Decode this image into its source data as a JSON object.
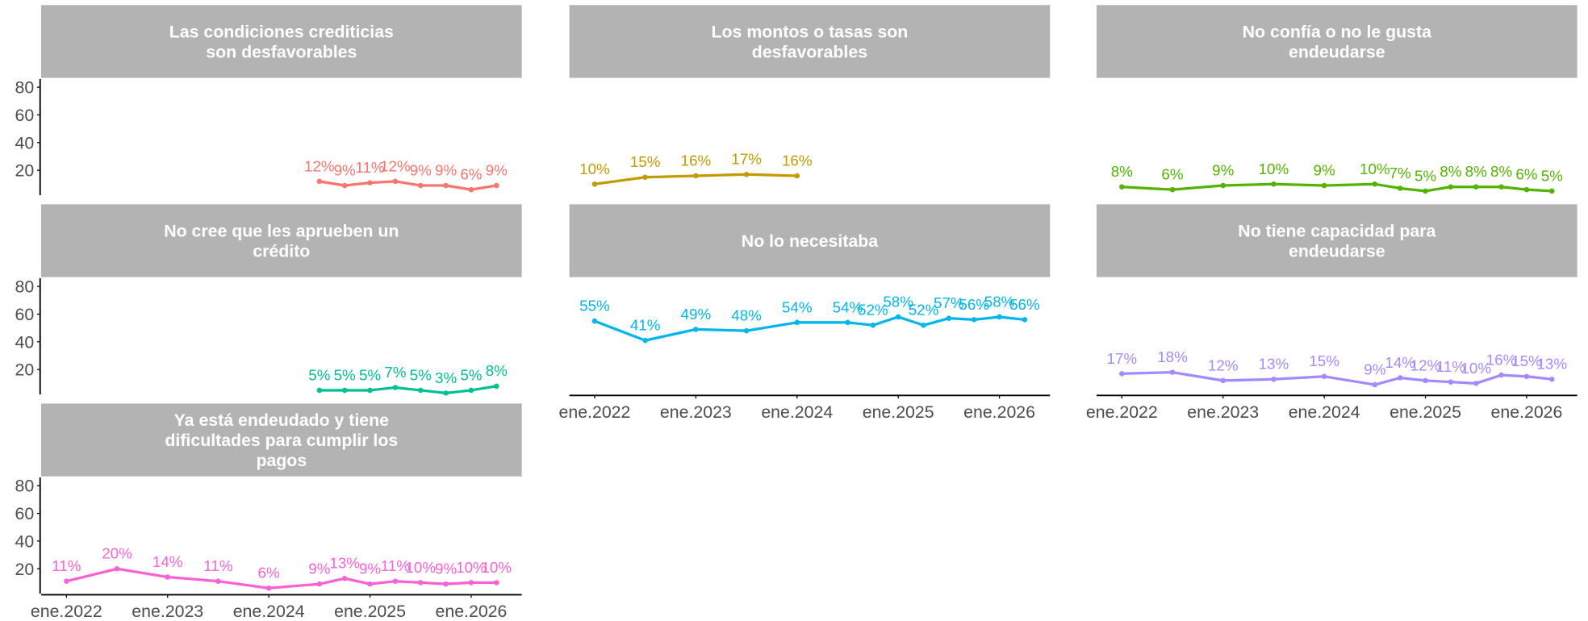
{
  "chart_data": [
    {
      "type": "line",
      "title": [
        "Las condiciones crediticias",
        "son desfavorables"
      ],
      "color": "#F8766D",
      "x": [
        "2024-07",
        "2024-10",
        "2025-01",
        "2025-04",
        "2025-07",
        "2025-10",
        "2026-01",
        "2026-04"
      ],
      "values": [
        12,
        9,
        11,
        12,
        9,
        9,
        6,
        9
      ],
      "value_labels": [
        "12%",
        "9%",
        "11%",
        "12%",
        "9%",
        "9%",
        "6%",
        "9%"
      ],
      "xlim": [
        "2021-10",
        "2026-07"
      ],
      "ylim": [
        2,
        86
      ],
      "yticks": [
        20,
        40,
        60,
        80
      ]
    },
    {
      "type": "line",
      "title": [
        "Los montos o tasas son",
        "desfavorables"
      ],
      "color": "#C49A00",
      "x": [
        "2022-01",
        "2022-07",
        "2023-01",
        "2023-07",
        "2024-01"
      ],
      "values": [
        10,
        15,
        16,
        17,
        16
      ],
      "value_labels": [
        "10%",
        "15%",
        "16%",
        "17%",
        "16%"
      ],
      "xlim": [
        "2021-10",
        "2026-07"
      ],
      "ylim": [
        2,
        86
      ]
    },
    {
      "type": "line",
      "title": [
        "No confía o no le gusta",
        "endeudarse"
      ],
      "color": "#53B400",
      "x": [
        "2022-01",
        "2022-07",
        "2023-01",
        "2023-07",
        "2024-01",
        "2024-07",
        "2024-10",
        "2025-01",
        "2025-04",
        "2025-07",
        "2025-10",
        "2026-01",
        "2026-04"
      ],
      "values": [
        8,
        6,
        9,
        10,
        9,
        10,
        7,
        5,
        8,
        8,
        8,
        6,
        5
      ],
      "value_labels": [
        "8%",
        "6%",
        "9%",
        "10%",
        "9%",
        "10%",
        "7%",
        "5%",
        "8%",
        "8%",
        "8%",
        "6%",
        "5%"
      ],
      "xlim": [
        "2021-10",
        "2026-07"
      ],
      "ylim": [
        2,
        86
      ]
    },
    {
      "type": "line",
      "title": [
        "No cree que les aprueben un",
        "crédito"
      ],
      "color": "#00C094",
      "x": [
        "2024-07",
        "2024-10",
        "2025-01",
        "2025-04",
        "2025-07",
        "2025-10",
        "2026-01",
        "2026-04"
      ],
      "values": [
        5,
        5,
        5,
        7,
        5,
        3,
        5,
        8
      ],
      "value_labels": [
        "5%",
        "5%",
        "5%",
        "7%",
        "5%",
        "3%",
        "5%",
        "8%"
      ],
      "xlim": [
        "2021-10",
        "2026-07"
      ],
      "ylim": [
        2,
        86
      ],
      "yticks": [
        20,
        40,
        60,
        80
      ]
    },
    {
      "type": "line",
      "title": [
        "No lo necesitaba"
      ],
      "color": "#00B6EB",
      "x": [
        "2022-01",
        "2022-07",
        "2023-01",
        "2023-07",
        "2024-01",
        "2024-07",
        "2024-10",
        "2025-01",
        "2025-04",
        "2025-07",
        "2025-10",
        "2026-01",
        "2026-04"
      ],
      "values": [
        55,
        41,
        49,
        48,
        54,
        54,
        52,
        58,
        52,
        57,
        56,
        58,
        56
      ],
      "value_labels": [
        "55%",
        "41%",
        "49%",
        "48%",
        "54%",
        "54%",
        "52%",
        "58%",
        "52%",
        "57%",
        "56%",
        "58%",
        "56%"
      ],
      "xlim": [
        "2021-10",
        "2026-07"
      ],
      "ylim": [
        2,
        86
      ],
      "xticks": [
        {
          "value": "2022-01",
          "label": "ene.2022"
        },
        {
          "value": "2023-01",
          "label": "ene.2023"
        },
        {
          "value": "2024-01",
          "label": "ene.2024"
        },
        {
          "value": "2025-01",
          "label": "ene.2025"
        },
        {
          "value": "2026-01",
          "label": "ene.2026"
        }
      ]
    },
    {
      "type": "line",
      "title": [
        "No tiene capacidad para",
        "endeudarse"
      ],
      "color": "#A58AFF",
      "x": [
        "2022-01",
        "2022-07",
        "2023-01",
        "2023-07",
        "2024-01",
        "2024-07",
        "2024-10",
        "2025-01",
        "2025-04",
        "2025-07",
        "2025-10",
        "2026-01",
        "2026-04"
      ],
      "values": [
        17,
        18,
        12,
        13,
        15,
        9,
        14,
        12,
        11,
        10,
        16,
        15,
        13
      ],
      "value_labels": [
        "17%",
        "18%",
        "12%",
        "13%",
        "15%",
        "9%",
        "14%",
        "12%",
        "11%",
        "10%",
        "16%",
        "15%",
        "13%"
      ],
      "xlim": [
        "2021-10",
        "2026-07"
      ],
      "ylim": [
        2,
        86
      ],
      "xticks": [
        {
          "value": "2022-01",
          "label": "ene.2022"
        },
        {
          "value": "2023-01",
          "label": "ene.2023"
        },
        {
          "value": "2024-01",
          "label": "ene.2024"
        },
        {
          "value": "2025-01",
          "label": "ene.2025"
        },
        {
          "value": "2026-01",
          "label": "ene.2026"
        }
      ]
    },
    {
      "type": "line",
      "title": [
        "Ya está endeudado y tiene",
        "dificultades para cumplir los",
        "pagos"
      ],
      "color": "#FB61D7",
      "x": [
        "2022-01",
        "2022-07",
        "2023-01",
        "2023-07",
        "2024-01",
        "2024-07",
        "2024-10",
        "2025-01",
        "2025-04",
        "2025-07",
        "2025-10",
        "2026-01",
        "2026-04"
      ],
      "values": [
        11,
        20,
        14,
        11,
        6,
        9,
        13,
        9,
        11,
        10,
        9,
        10,
        10
      ],
      "value_labels": [
        "11%",
        "20%",
        "14%",
        "11%",
        "6%",
        "9%",
        "13%",
        "9%",
        "11%",
        "10%",
        "9%",
        "10%",
        "10%"
      ],
      "xlim": [
        "2021-10",
        "2026-07"
      ],
      "ylim": [
        2,
        86
      ],
      "yticks": [
        20,
        40,
        60,
        80
      ],
      "xticks": [
        {
          "value": "2022-01",
          "label": "ene.2022"
        },
        {
          "value": "2023-01",
          "label": "ene.2023"
        },
        {
          "value": "2024-01",
          "label": "ene.2024"
        },
        {
          "value": "2025-01",
          "label": "ene.2025"
        },
        {
          "value": "2026-01",
          "label": "ene.2026"
        }
      ]
    }
  ]
}
